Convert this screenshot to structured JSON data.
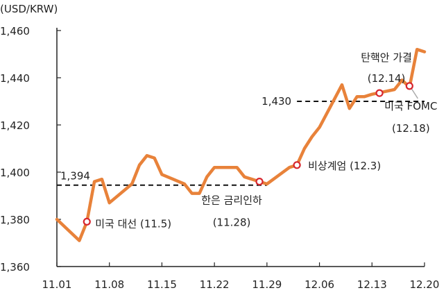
{
  "chart_data": {
    "type": "line",
    "unit_label": "(USD/KRW)",
    "ylim": [
      1360,
      1460
    ],
    "y_ticks": [
      "1,460",
      "1,440",
      "1,420",
      "1,400",
      "1,380",
      "1,360"
    ],
    "x_ticks": [
      "11.01",
      "11.08",
      "11.15",
      "11.22",
      "11.29",
      "12.06",
      "12.13",
      "12.20"
    ],
    "line_color": "#E8823A",
    "marker_color": "#D7262E",
    "series": [
      {
        "dates": [
          "11.01",
          "11.04",
          "11.05",
          "11.06",
          "11.07",
          "11.08",
          "11.11",
          "11.12",
          "11.13",
          "11.14",
          "11.15",
          "11.18",
          "11.19",
          "11.20",
          "11.21",
          "11.22",
          "11.25",
          "11.26",
          "11.27",
          "11.28",
          "11.29",
          "12.02",
          "12.03",
          "12.04",
          "12.05",
          "12.06",
          "12.09",
          "12.10",
          "12.11",
          "12.12",
          "12.13",
          "12.16",
          "12.17",
          "12.18",
          "12.19",
          "12.20"
        ],
        "values": [
          1380,
          1371,
          1379,
          1396,
          1397,
          1387,
          1395,
          1403,
          1407,
          1406,
          1399,
          1395,
          1391,
          1391,
          1398,
          1402,
          1402,
          1398,
          1397,
          1396,
          1395,
          1402,
          1403,
          1410,
          1415,
          1419,
          1437,
          1427,
          1432,
          1432,
          1433,
          1435,
          1439,
          1436,
          1452,
          1451
        ]
      }
    ],
    "reference_lines": [
      {
        "value": 1394.5,
        "label": "1,394",
        "from": "11.01",
        "to": "11.29"
      },
      {
        "value": 1430,
        "label": "1,430",
        "from": "12.03",
        "to": "12.20"
      }
    ],
    "annotations": [
      {
        "date": "11.05",
        "value": 1379,
        "lines": [
          "미국 대선 (11.5)"
        ]
      },
      {
        "date": "11.28",
        "value": 1396,
        "lines": [
          "한은 금리인하",
          "(11.28)"
        ]
      },
      {
        "date": "12.03",
        "value": 1403,
        "lines": [
          "비상계엄 (12.3)"
        ]
      },
      {
        "date": "12.14",
        "value": 1433.5,
        "lines": [
          "탄핵안 가결",
          "(12.14)"
        ]
      },
      {
        "date": "12.18",
        "value": 1436.5,
        "lines": [
          "미국 FOMC",
          "(12.18)"
        ]
      }
    ]
  }
}
